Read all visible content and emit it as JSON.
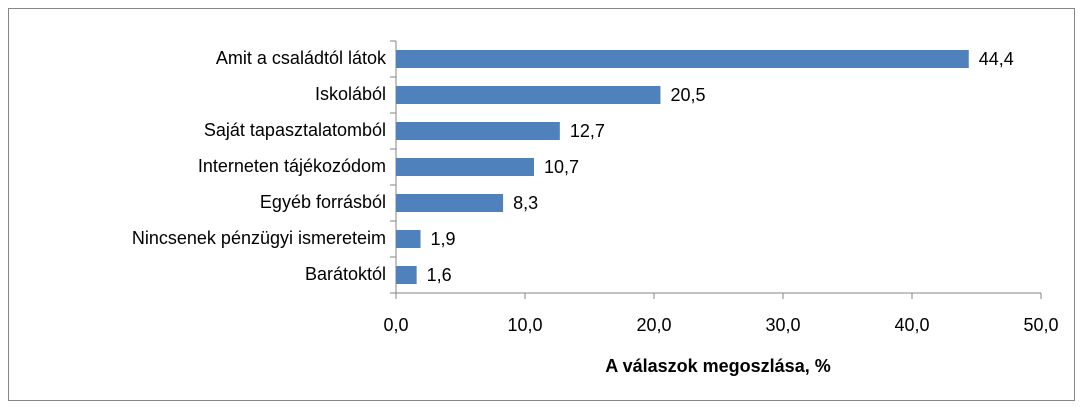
{
  "chart_data": {
    "type": "hbar",
    "x_label": "A válaszok megoszlása, %",
    "categories": [
      "Amit a családtól látok",
      "Iskolából",
      "Saját tapasztalatomból",
      "Interneten tájékozódom",
      "Egyéb forrásból",
      "Nincsenek pénzügyi ismereteim",
      "Barátoktól"
    ],
    "values": [
      44.4,
      20.5,
      12.7,
      10.7,
      8.3,
      1.9,
      1.6
    ],
    "value_labels": [
      "44,4",
      "20,5",
      "12,7",
      "10,7",
      "8,3",
      "1,9",
      "1,6"
    ],
    "color": "#4f81bd",
    "xlim": [
      0,
      50
    ],
    "xticks": [
      {
        "value": 0,
        "label": "0,0"
      },
      {
        "value": 10,
        "label": "10,0"
      },
      {
        "value": 20,
        "label": "20,0"
      },
      {
        "value": 30,
        "label": "30,0"
      },
      {
        "value": 40,
        "label": "40,0"
      },
      {
        "value": 50,
        "label": "50,0"
      }
    ]
  }
}
